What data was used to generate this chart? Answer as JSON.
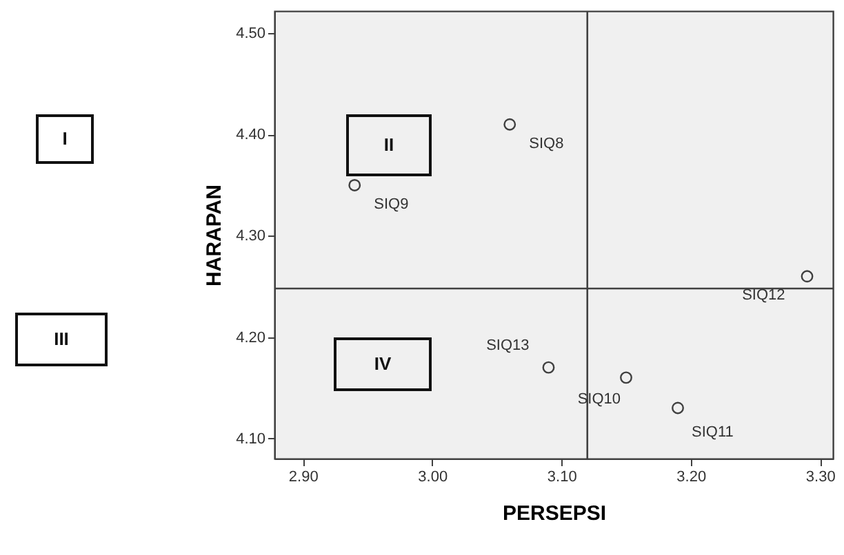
{
  "chart_data": {
    "type": "scatter",
    "xlabel": "PERSEPSI",
    "ylabel": "HARAPAN",
    "x": [
      3.06,
      2.94,
      3.29,
      3.09,
      3.15,
      3.19
    ],
    "values": [
      4.41,
      4.35,
      4.26,
      4.17,
      4.16,
      4.13
    ],
    "value_labels": [
      "SIQ8",
      "SIQ9",
      "SIQ12",
      "SIQ13",
      "SIQ10",
      "SIQ11"
    ],
    "color": "#404040",
    "marker": "circle",
    "xlim": [
      2.878,
      3.31
    ],
    "xticks": [
      {
        "value": 2.9,
        "label": "2.90"
      },
      {
        "value": 3.0,
        "label": "3.00"
      },
      {
        "value": 3.1,
        "label": "3.10"
      },
      {
        "value": 3.2,
        "label": "3.20"
      },
      {
        "value": 3.3,
        "label": "3.30"
      }
    ],
    "ylim": [
      4.08,
      4.522
    ],
    "yticks": [
      {
        "value": 4.1,
        "label": "4.10"
      },
      {
        "value": 4.2,
        "label": "4.20"
      },
      {
        "value": 4.3,
        "label": "4.30"
      },
      {
        "value": 4.4,
        "label": "4.40"
      },
      {
        "value": 4.5,
        "label": "4.50"
      }
    ],
    "ref_lines": [
      {
        "axis": "x",
        "value": 3.12,
        "color": "#404040"
      },
      {
        "axis": "y",
        "value": 4.248,
        "color": "#404040"
      }
    ],
    "annotations": [
      "I",
      "II",
      "III",
      "IV"
    ],
    "grid": false
  }
}
